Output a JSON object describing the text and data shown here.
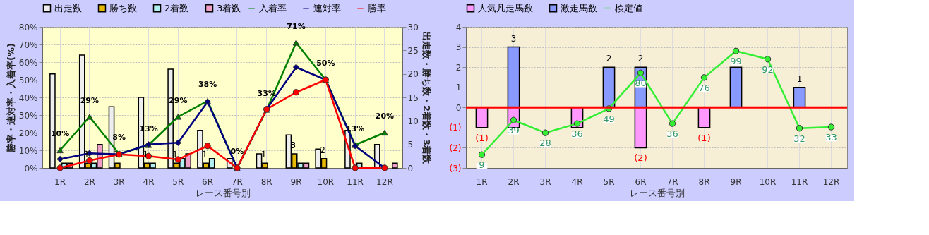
{
  "chart_data": [
    {
      "type": "bar",
      "xlabel": "レース番号別",
      "ylabel": "勝率・連対率・入着率(%)",
      "y2label": "出走数・勝ち数・2着数・3着数",
      "categories": [
        "1R",
        "2R",
        "3R",
        "4R",
        "5R",
        "6R",
        "7R",
        "8R",
        "9R",
        "10R",
        "11R",
        "12R"
      ],
      "series": [
        {
          "name": "出走数",
          "color": "#eeeeee",
          "axis": "y2",
          "values": [
            20,
            24,
            13,
            15,
            21,
            8,
            2,
            3,
            7,
            4,
            8,
            5
          ]
        },
        {
          "name": "勝ち数",
          "color": "#e6b800",
          "axis": "y2",
          "values": [
            0,
            1,
            1,
            1,
            1,
            1,
            0,
            1,
            3,
            2,
            0,
            0
          ],
          "value_labels": [
            null,
            "1",
            "1",
            "1",
            "1",
            "1",
            null,
            "1",
            "3",
            "2",
            null,
            null
          ]
        },
        {
          "name": "2着数",
          "color": "#b3f0f0",
          "axis": "y2",
          "values": [
            1,
            1,
            0,
            1,
            2,
            2,
            0,
            0,
            1,
            0,
            1,
            0
          ]
        },
        {
          "name": "3着数",
          "color": "#f0a0c8",
          "axis": "y2",
          "values": [
            1,
            5,
            0,
            0,
            3,
            0,
            0,
            0,
            1,
            0,
            0,
            1
          ]
        },
        {
          "name": "入着率",
          "type": "line",
          "color": "#008000",
          "marker": "triangle",
          "values": [
            10,
            29,
            8,
            13,
            29,
            38,
            0,
            33,
            71,
            50,
            13,
            20
          ],
          "value_labels": [
            "10%",
            "29%",
            "8%",
            "13%",
            "29%",
            "38%",
            "0%",
            "33%",
            "71%",
            "50%",
            "13%",
            "20%"
          ]
        },
        {
          "name": "連対率",
          "type": "line",
          "color": "#000080",
          "marker": "diamond",
          "values": [
            5,
            8.3,
            7.7,
            13.3,
            14.3,
            37.5,
            0,
            33.3,
            57.1,
            50,
            12.5,
            0
          ]
        },
        {
          "name": "勝率",
          "type": "line",
          "color": "#ff0000",
          "marker": "circle",
          "values": [
            0,
            4.2,
            7.7,
            6.7,
            4.8,
            12.5,
            0,
            33.3,
            42.9,
            50,
            0,
            0
          ]
        }
      ],
      "ylim": [
        0,
        80
      ],
      "yticks": [
        {
          "value": 0,
          "label": "0%"
        },
        {
          "value": 10,
          "label": "10%"
        },
        {
          "value": 20,
          "label": "20%"
        },
        {
          "value": 30,
          "label": "30%"
        },
        {
          "value": 40,
          "label": "40%"
        },
        {
          "value": 50,
          "label": "50%"
        },
        {
          "value": 60,
          "label": "60%"
        },
        {
          "value": 70,
          "label": "70%"
        },
        {
          "value": 80,
          "label": "80%"
        }
      ],
      "y2lim": [
        0,
        30
      ],
      "y2ticks": [
        0,
        5,
        10,
        15,
        20,
        25,
        30
      ],
      "grid": true,
      "legend": "top"
    },
    {
      "type": "bar",
      "xlabel": "レース番号別",
      "stacked": true,
      "categories": [
        "1R",
        "2R",
        "3R",
        "4R",
        "5R",
        "6R",
        "7R",
        "8R",
        "9R",
        "10R",
        "11R",
        "12R"
      ],
      "series": [
        {
          "name": "人気凡走馬数",
          "color": "#ff99ff",
          "values": [
            -1,
            -1,
            null,
            -1,
            null,
            -2,
            null,
            -1,
            null,
            null,
            null,
            null
          ],
          "value_labels": [
            "(1)",
            null,
            null,
            null,
            null,
            "(2)",
            null,
            "(1)",
            null,
            null,
            null,
            null
          ]
        },
        {
          "name": "激走馬数",
          "color": "#8899ff",
          "values": [
            null,
            3,
            null,
            null,
            2,
            2,
            null,
            null,
            2,
            null,
            1,
            null
          ],
          "value_labels": [
            null,
            "3",
            null,
            null,
            "2",
            "2",
            null,
            null,
            null,
            null,
            "1",
            null
          ]
        },
        {
          "name": "検定値",
          "type": "line",
          "axis": "y2",
          "color": "#33ee33",
          "marker": "circle",
          "values": [
            9,
            39,
            28,
            36,
            49,
            80,
            36,
            76,
            99,
            92,
            32,
            33
          ],
          "value_labels": [
            "9",
            "39",
            "28",
            "36",
            "49",
            "80",
            "36",
            "76",
            "99",
            "92",
            "32",
            "33"
          ]
        }
      ],
      "ylim": [
        -3,
        4
      ],
      "yticks": [
        4,
        3,
        2,
        1,
        0,
        {
          "value": -1,
          "label": "(1)"
        },
        {
          "value": -2,
          "label": "(2)"
        },
        {
          "value": -3,
          "label": "(3)"
        }
      ],
      "y2lim": [
        -2.5,
        120
      ],
      "grid": true,
      "legend": "top",
      "ref_lines": [
        {
          "axis": "y",
          "value": 0,
          "color": "#ff0000"
        }
      ]
    }
  ]
}
